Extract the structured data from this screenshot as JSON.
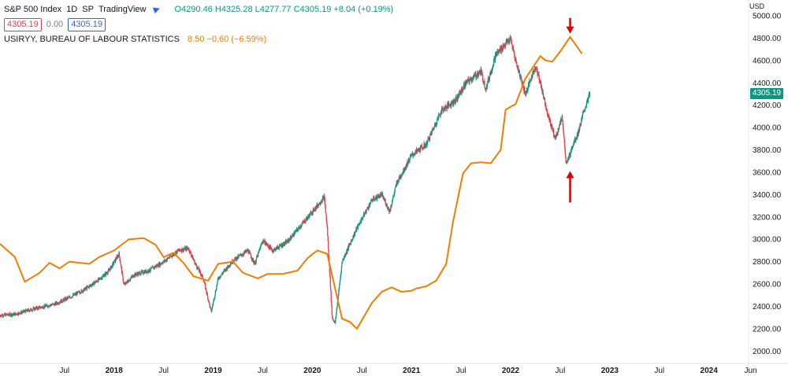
{
  "header": {
    "symbol": "S&P 500 Index",
    "interval": "1D",
    "exchange": "SP",
    "source": "TradingView",
    "ohlc": {
      "o": "O4290.46",
      "h": "H4325.28",
      "l": "L4277.77",
      "c": "C4305.19",
      "chg": "+8.04 (+0.19%)"
    },
    "sell_price": "4305.19",
    "spread": "0.00",
    "buy_price": "4305.19"
  },
  "indicator": {
    "name": "USIRYY, BUREAU OF LABOUR STATISTICS",
    "value": "8.50",
    "change": "−0.60 (−6.59%)"
  },
  "price_axis": {
    "currency": "USD",
    "last_price_label": "4305.19"
  },
  "colors": {
    "up": "#089981",
    "down": "#f23645",
    "indicator": "#f57c00",
    "arrow": "#d50000",
    "grid": "#f0f3fa",
    "axis_text": "#131722"
  },
  "chart_data": {
    "type": "line",
    "title": "S&P 500 Index, 1D, SP",
    "xlabel": "",
    "ylabel": "USD",
    "ylim": [
      1960,
      5000
    ],
    "yticks": [
      2000,
      2200,
      2400,
      2600,
      2800,
      3000,
      3200,
      3400,
      3600,
      3800,
      4000,
      4200,
      4400,
      4600,
      4800,
      5000
    ],
    "ytick_labels": [
      "2000.00",
      "2200.00",
      "2400.00",
      "2600.00",
      "2800.00",
      "3000.00",
      "3200.00",
      "3400.00",
      "3600.00",
      "3800.00",
      "4000.00",
      "4200.00",
      "4400.00",
      "4600.00",
      "4800.00",
      "5000.00"
    ],
    "xlim": [
      2016.85,
      2024.4
    ],
    "xticks": [
      {
        "x": 2017.5,
        "label": "Jul",
        "bold": false
      },
      {
        "x": 2018.0,
        "label": "2018",
        "bold": true
      },
      {
        "x": 2018.5,
        "label": "Jul",
        "bold": false
      },
      {
        "x": 2019.0,
        "label": "2019",
        "bold": true
      },
      {
        "x": 2019.5,
        "label": "Jul",
        "bold": false
      },
      {
        "x": 2020.0,
        "label": "2020",
        "bold": true
      },
      {
        "x": 2020.5,
        "label": "Jul",
        "bold": false
      },
      {
        "x": 2021.0,
        "label": "2021",
        "bold": true
      },
      {
        "x": 2021.5,
        "label": "Jul",
        "bold": false
      },
      {
        "x": 2022.0,
        "label": "2022",
        "bold": true
      },
      {
        "x": 2022.5,
        "label": "Jul",
        "bold": false
      },
      {
        "x": 2023.0,
        "label": "2023",
        "bold": true
      },
      {
        "x": 2023.5,
        "label": "Jul",
        "bold": false
      },
      {
        "x": 2024.0,
        "label": "2024",
        "bold": true
      },
      {
        "x": 2024.42,
        "label": "Jun",
        "bold": false
      }
    ],
    "series": [
      {
        "name": "S&P 500 Index",
        "kind": "price",
        "points": [
          [
            2016.85,
            2320
          ],
          [
            2017.0,
            2330
          ],
          [
            2017.2,
            2380
          ],
          [
            2017.4,
            2420
          ],
          [
            2017.55,
            2480
          ],
          [
            2017.7,
            2550
          ],
          [
            2017.85,
            2640
          ],
          [
            2017.95,
            2720
          ],
          [
            2018.05,
            2870
          ],
          [
            2018.1,
            2590
          ],
          [
            2018.2,
            2680
          ],
          [
            2018.35,
            2720
          ],
          [
            2018.5,
            2800
          ],
          [
            2018.65,
            2900
          ],
          [
            2018.75,
            2920
          ],
          [
            2018.82,
            2780
          ],
          [
            2018.9,
            2650
          ],
          [
            2018.98,
            2350
          ],
          [
            2019.05,
            2650
          ],
          [
            2019.2,
            2810
          ],
          [
            2019.35,
            2900
          ],
          [
            2019.42,
            2780
          ],
          [
            2019.5,
            2990
          ],
          [
            2019.6,
            2900
          ],
          [
            2019.75,
            2980
          ],
          [
            2019.9,
            3140
          ],
          [
            2020.05,
            3300
          ],
          [
            2020.12,
            3380
          ],
          [
            2020.15,
            3100
          ],
          [
            2020.2,
            2300
          ],
          [
            2020.23,
            2250
          ],
          [
            2020.3,
            2800
          ],
          [
            2020.45,
            3100
          ],
          [
            2020.6,
            3350
          ],
          [
            2020.7,
            3400
          ],
          [
            2020.78,
            3250
          ],
          [
            2020.85,
            3500
          ],
          [
            2021.0,
            3750
          ],
          [
            2021.15,
            3850
          ],
          [
            2021.3,
            4150
          ],
          [
            2021.45,
            4250
          ],
          [
            2021.55,
            4400
          ],
          [
            2021.7,
            4500
          ],
          [
            2021.75,
            4350
          ],
          [
            2021.85,
            4650
          ],
          [
            2021.95,
            4750
          ],
          [
            2022.0,
            4790
          ],
          [
            2022.05,
            4600
          ],
          [
            2022.15,
            4300
          ],
          [
            2022.25,
            4550
          ],
          [
            2022.3,
            4400
          ],
          [
            2022.38,
            4100
          ],
          [
            2022.45,
            3900
          ],
          [
            2022.52,
            4100
          ],
          [
            2022.56,
            3660
          ],
          [
            2022.62,
            3830
          ],
          [
            2022.68,
            3950
          ],
          [
            2022.74,
            4150
          ],
          [
            2022.8,
            4305
          ]
        ]
      },
      {
        "name": "USIRYY, BUREAU OF LABOUR STATISTICS",
        "kind": "indicator",
        "points": [
          [
            2016.85,
            2960
          ],
          [
            2017.0,
            2840
          ],
          [
            2017.1,
            2620
          ],
          [
            2017.25,
            2700
          ],
          [
            2017.35,
            2790
          ],
          [
            2017.45,
            2740
          ],
          [
            2017.55,
            2800
          ],
          [
            2017.75,
            2780
          ],
          [
            2017.85,
            2840
          ],
          [
            2018.0,
            2900
          ],
          [
            2018.15,
            3000
          ],
          [
            2018.3,
            3010
          ],
          [
            2018.42,
            2950
          ],
          [
            2018.5,
            2840
          ],
          [
            2018.6,
            2880
          ],
          [
            2018.7,
            2790
          ],
          [
            2018.8,
            2670
          ],
          [
            2018.95,
            2630
          ],
          [
            2019.05,
            2780
          ],
          [
            2019.2,
            2800
          ],
          [
            2019.3,
            2700
          ],
          [
            2019.45,
            2650
          ],
          [
            2019.55,
            2690
          ],
          [
            2019.7,
            2690
          ],
          [
            2019.85,
            2720
          ],
          [
            2019.95,
            2830
          ],
          [
            2020.05,
            2900
          ],
          [
            2020.15,
            2870
          ],
          [
            2020.3,
            2290
          ],
          [
            2020.38,
            2260
          ],
          [
            2020.45,
            2200
          ],
          [
            2020.6,
            2430
          ],
          [
            2020.7,
            2530
          ],
          [
            2020.8,
            2570
          ],
          [
            2020.9,
            2530
          ],
          [
            2021.0,
            2540
          ],
          [
            2021.05,
            2560
          ],
          [
            2021.15,
            2580
          ],
          [
            2021.25,
            2630
          ],
          [
            2021.35,
            2780
          ],
          [
            2021.42,
            3160
          ],
          [
            2021.52,
            3590
          ],
          [
            2021.6,
            3680
          ],
          [
            2021.7,
            3690
          ],
          [
            2021.8,
            3680
          ],
          [
            2021.9,
            3800
          ],
          [
            2021.95,
            4160
          ],
          [
            2022.05,
            4210
          ],
          [
            2022.15,
            4440
          ],
          [
            2022.3,
            4640
          ],
          [
            2022.35,
            4600
          ],
          [
            2022.42,
            4590
          ],
          [
            2022.5,
            4680
          ],
          [
            2022.6,
            4810
          ],
          [
            2022.72,
            4660
          ]
        ]
      }
    ],
    "annotations": [
      {
        "type": "arrow-down",
        "x": 2022.6,
        "y_from": 4980,
        "y_to": 4840
      },
      {
        "type": "arrow-up",
        "x": 2022.6,
        "y_from": 3330,
        "y_to": 3610
      }
    ],
    "last_price": 4305.19,
    "grid": false,
    "legend": "top-left"
  }
}
